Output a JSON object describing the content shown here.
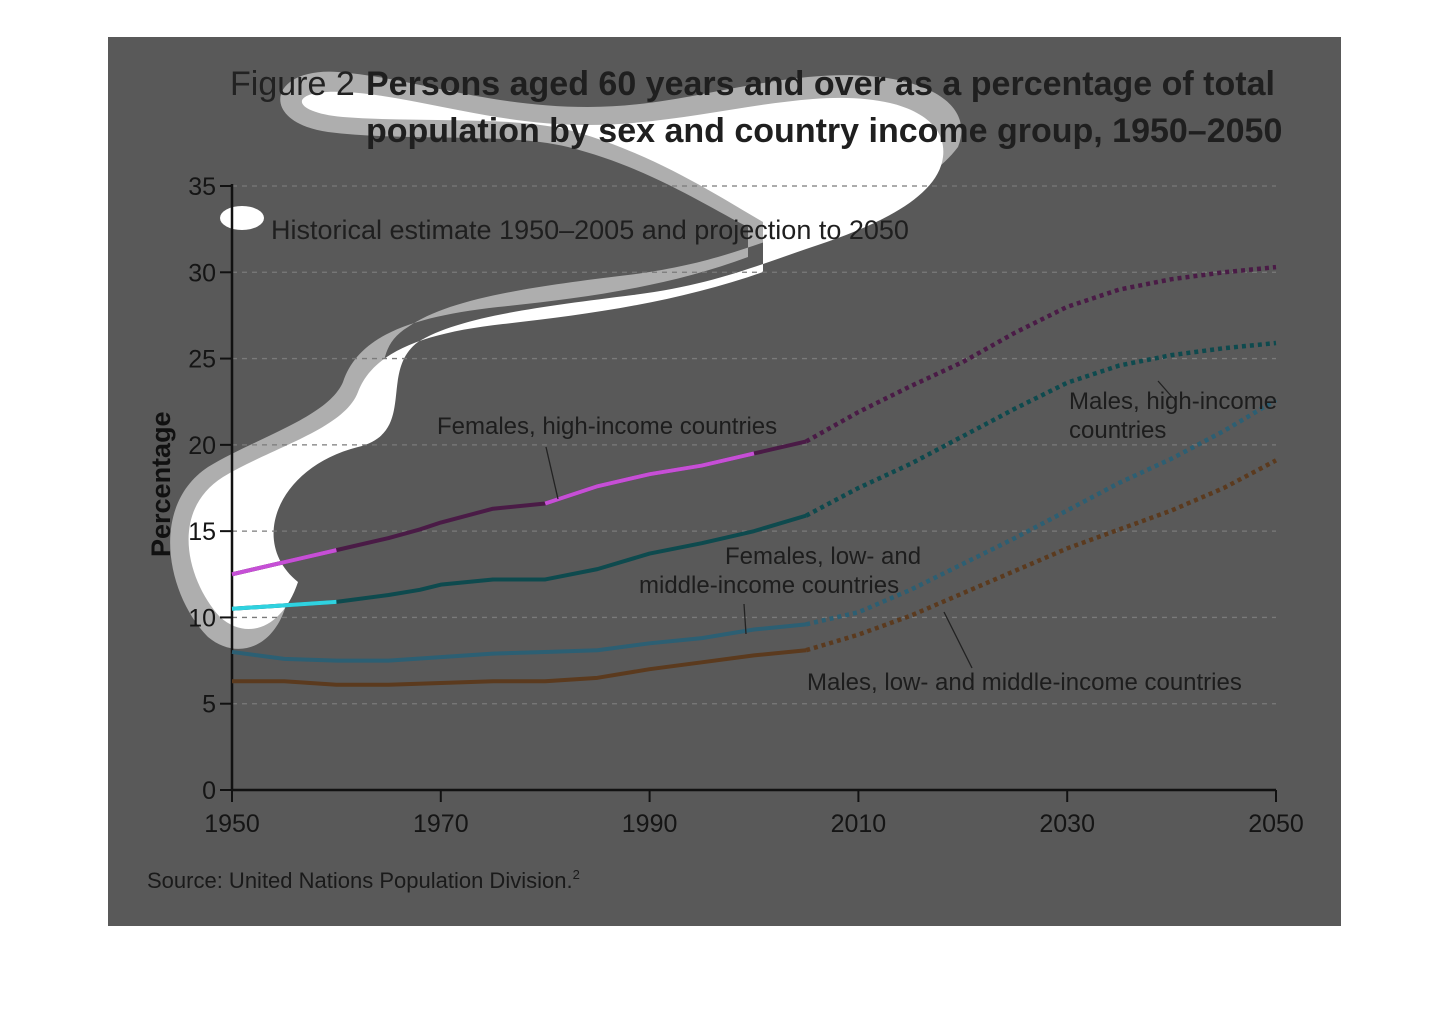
{
  "figure": {
    "label": "Figure 2",
    "title_line1": "Persons aged 60 years and over as a percentage of total",
    "title_line2": "population by sex and country income group, 1950–2050",
    "subtitle": "Historical estimate 1950–2005 and projection to 2050",
    "source": "Source: United Nations Population Division.",
    "source_ref": "2"
  },
  "chart_data": {
    "type": "line",
    "title": "Persons aged 60 years and over as a percentage of total population by sex and country income group, 1950–2050",
    "xlabel": "",
    "ylabel": "Percentage",
    "xlim": [
      1950,
      2050
    ],
    "ylim": [
      0,
      35
    ],
    "x_ticks": [
      1950,
      1970,
      1990,
      2010,
      2030,
      2050
    ],
    "y_ticks": [
      0,
      5,
      10,
      15,
      20,
      25,
      30,
      35
    ],
    "grid": "horizontal dashed",
    "historical_range": [
      1950,
      2005
    ],
    "projection_range": [
      2005,
      2050
    ],
    "line_style": "solid for historical estimate, dotted for projection",
    "series": [
      {
        "name": "Females, high-income countries",
        "color": "#4a1b46",
        "historical_color": "#c64fd6",
        "label_line1": "Females, high-income countries",
        "label_line2": "",
        "x": [
          1950,
          1955,
          1960,
          1965,
          1968,
          1970,
          1975,
          1980,
          1985,
          1990,
          1995,
          2000,
          2005,
          2010,
          2015,
          2020,
          2025,
          2030,
          2035,
          2040,
          2045,
          2050
        ],
        "y": [
          12.5,
          13.2,
          13.9,
          14.6,
          15.1,
          15.5,
          16.3,
          16.6,
          17.6,
          18.3,
          18.8,
          19.5,
          20.2,
          21.9,
          23.4,
          24.8,
          26.5,
          28.0,
          29.0,
          29.6,
          30.0,
          30.3
        ]
      },
      {
        "name": "Males, high-income countries",
        "color": "#0e4a4e",
        "historical_color": "#2fd2e0",
        "label_line1": "Males, high-income",
        "label_line2": "countries",
        "x": [
          1950,
          1955,
          1960,
          1965,
          1968,
          1970,
          1975,
          1980,
          1985,
          1990,
          1995,
          2000,
          2005,
          2010,
          2015,
          2020,
          2025,
          2030,
          2035,
          2040,
          2045,
          2050
        ],
        "y": [
          10.5,
          10.7,
          10.9,
          11.3,
          11.6,
          11.9,
          12.2,
          12.2,
          12.8,
          13.7,
          14.3,
          15.0,
          15.9,
          17.5,
          18.9,
          20.5,
          22.1,
          23.6,
          24.6,
          25.2,
          25.6,
          25.9
        ]
      },
      {
        "name": "Females, low- and middle-income countries",
        "color": "#2c5f73",
        "historical_color": "#2c5f73",
        "label_line1": "Females, low- and",
        "label_line2": "middle-income countries",
        "x": [
          1950,
          1955,
          1960,
          1965,
          1970,
          1975,
          1980,
          1985,
          1990,
          1995,
          2000,
          2005,
          2010,
          2015,
          2020,
          2025,
          2030,
          2035,
          2040,
          2045,
          2050
        ],
        "y": [
          8.0,
          7.6,
          7.5,
          7.5,
          7.7,
          7.9,
          8.0,
          8.1,
          8.5,
          8.8,
          9.3,
          9.6,
          10.3,
          11.6,
          13.1,
          14.6,
          16.2,
          17.8,
          19.2,
          20.8,
          22.6
        ]
      },
      {
        "name": "Males, low- and middle-income countries",
        "color": "#5b3a1e",
        "historical_color": "#5b3a1e",
        "label_line1": "Males, low- and middle-income countries",
        "label_line2": "",
        "x": [
          1950,
          1955,
          1960,
          1965,
          1970,
          1975,
          1980,
          1985,
          1990,
          1995,
          2000,
          2005,
          2010,
          2015,
          2020,
          2025,
          2030,
          2035,
          2040,
          2045,
          2050
        ],
        "y": [
          6.3,
          6.3,
          6.1,
          6.1,
          6.2,
          6.3,
          6.3,
          6.5,
          7.0,
          7.4,
          7.8,
          8.1,
          9.0,
          10.1,
          11.4,
          12.7,
          14.0,
          15.1,
          16.2,
          17.5,
          19.1
        ]
      }
    ]
  }
}
